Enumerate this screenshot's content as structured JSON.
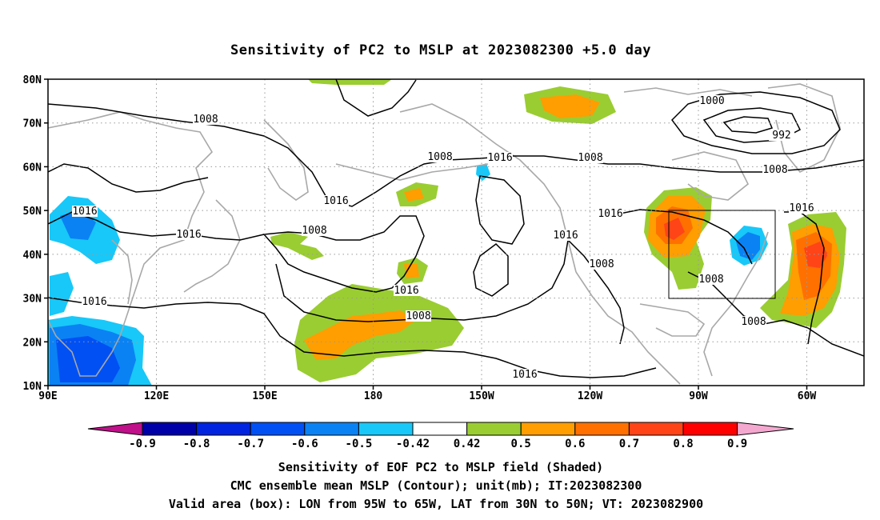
{
  "title": "Sensitivity of PC2 to MSLP at 2023082300 +5.0 day",
  "map": {
    "lat_ticks": [
      "80N",
      "70N",
      "60N",
      "50N",
      "40N",
      "30N",
      "20N",
      "10N"
    ],
    "lon_ticks": [
      "90E",
      "120E",
      "150E",
      "180",
      "150W",
      "120W",
      "90W",
      "60W"
    ],
    "grid": true,
    "valid_box": {
      "lon_from": "95W",
      "lon_to": "65W",
      "lat_from": "30N",
      "lat_to": "50N"
    },
    "contour_labels": [
      "1008",
      "1008",
      "1008",
      "1016",
      "1016",
      "1016",
      "1016",
      "1008",
      "1016",
      "1016",
      "1000",
      "992",
      "1008",
      "1016",
      "1016",
      "1008",
      "1008",
      "1008",
      "1008",
      "1016",
      "1016"
    ]
  },
  "colorbar": {
    "labels": [
      "-0.9",
      "-0.8",
      "-0.7",
      "-0.6",
      "-0.5",
      "-0.42",
      "0.42",
      "0.5",
      "0.6",
      "0.7",
      "0.8",
      "0.9"
    ],
    "colors": [
      "#0000a8",
      "#0024e0",
      "#0050f4",
      "#0a82f4",
      "#18c8f8",
      "#ffffff",
      "#9acd32",
      "#ff9e00",
      "#ff7000",
      "#ff4418",
      "#ff0000"
    ],
    "low_end_color": "#c0108a",
    "high_end_color": "#f4a8d0"
  },
  "footer": {
    "line1": "Sensitivity of EOF PC2 to MSLP field (Shaded)",
    "line2": "CMC ensemble mean MSLP (Contour); unit(mb); IT:2023082300",
    "line3": "Valid area (box): LON from 95W to 65W, LAT from 30N to 50N; VT: 2023082900"
  }
}
